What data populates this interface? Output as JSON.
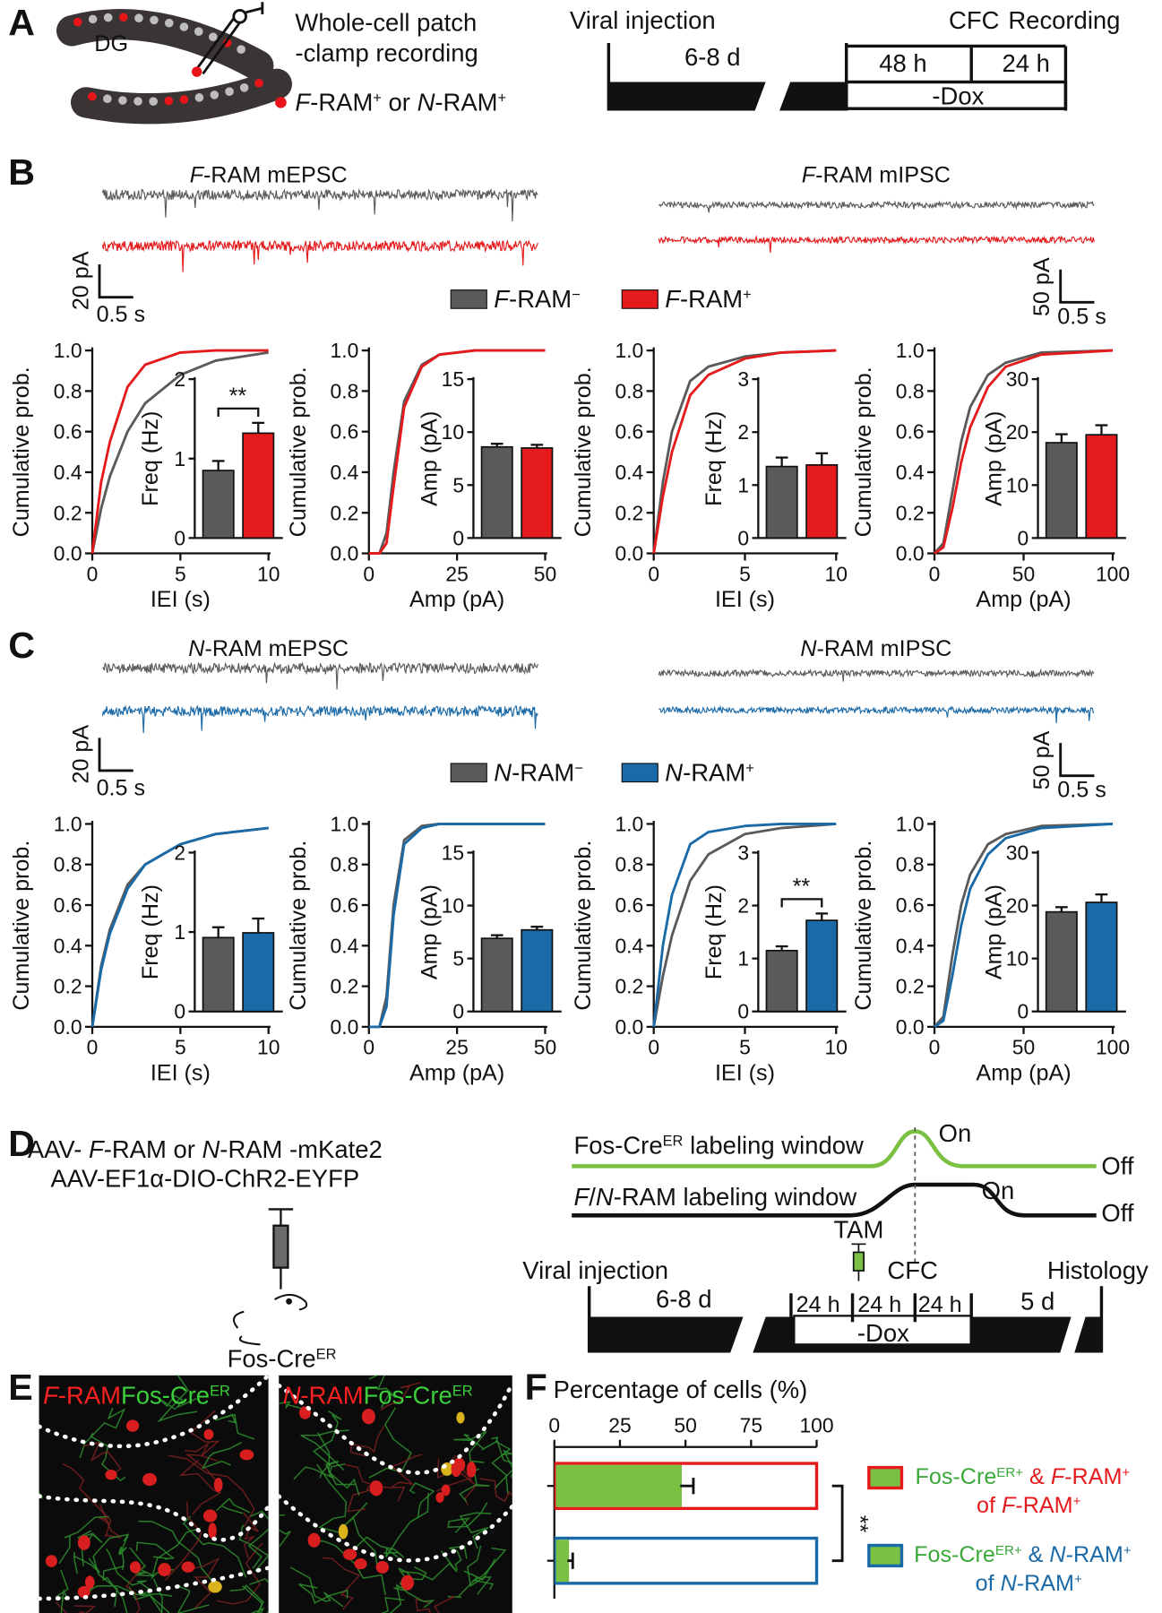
{
  "panel_labels": [
    "A",
    "B",
    "C",
    "D",
    "E",
    "F"
  ],
  "a": {
    "dg": "DG",
    "method": [
      "Whole-cell patch",
      "-clamp recording"
    ],
    "cell_legend": [
      "F",
      "-RAM",
      "+",
      " or ",
      "N",
      "-RAM",
      "+"
    ],
    "timeline": {
      "viral": "Viral injection",
      "cfc": "CFC",
      "recording": "Recording",
      "d1": "6-8 d",
      "d2": "48 h",
      "d3": "24 h",
      "dox": "-Dox"
    }
  },
  "b": {
    "titles": [
      [
        "F",
        "-RAM mEPSC"
      ],
      [
        "F",
        "-RAM mIPSC"
      ]
    ],
    "scale_left": [
      "20 pA",
      "0.5 s"
    ],
    "scale_right": [
      "50 pA",
      "0.5 s"
    ],
    "legend": [
      [
        "F",
        "-RAM",
        "−"
      ],
      [
        "F",
        "-RAM",
        "+"
      ]
    ],
    "colors": [
      "#5a5a5a",
      "#e41a1c"
    ]
  },
  "c": {
    "titles": [
      [
        "N",
        "-RAM mEPSC"
      ],
      [
        "N",
        "-RAM mIPSC"
      ]
    ],
    "scale_left": [
      "20 pA",
      "0.5 s"
    ],
    "scale_right": [
      "50 pA",
      "0.5 s"
    ],
    "legend": [
      [
        "N",
        "-RAM",
        "−"
      ],
      [
        "N",
        "-RAM",
        "+"
      ]
    ],
    "colors": [
      "#5a5a5a",
      "#1b6aa8"
    ]
  },
  "d": {
    "virus1": [
      "AAV- ",
      "F",
      "-RAM or ",
      "N",
      "-RAM -mKate2"
    ],
    "virus2": "AAV-EF1α-DIO-ChR2-EYFP",
    "mouse": [
      "Fos-Cre",
      "ER"
    ],
    "green_window": [
      "Fos-Cre",
      "ER",
      " labeling window"
    ],
    "green_on": "On",
    "green_off": "Off",
    "black_window": [
      "F",
      "/",
      "N",
      "-RAM labeling window"
    ],
    "black_on": "On",
    "black_off": "Off",
    "tam": "TAM",
    "timeline": {
      "viral": "Viral injection",
      "cfc": "CFC",
      "histology": "Histology",
      "d1": "6-8 d",
      "h1": "24 h",
      "h2": "24 h",
      "h3": "24 h",
      "d2": "5 d",
      "dox": "-Dox"
    }
  },
  "e": {
    "left": [
      "F",
      "-RAM",
      "Fos-Cre",
      "ER"
    ],
    "right": [
      "N",
      "-RAM",
      "Fos-Cre",
      "ER"
    ]
  },
  "chart_data": [
    {
      "type": "line",
      "xlabel": "IEI (s)",
      "ylabel": "Cumulative prob.",
      "x": [
        0,
        0.5,
        1,
        2,
        3,
        5,
        7,
        10
      ],
      "xlim": [
        0,
        10
      ],
      "xticks": [
        0,
        5,
        10
      ],
      "ylim": [
        0,
        1
      ],
      "yticks": [
        {
          "value": 0,
          "label": "0.0"
        },
        0.2,
        0.4,
        0.6,
        0.8,
        {
          "value": 1,
          "label": "1.0"
        }
      ],
      "series": [
        {
          "color": "#5a5a5a",
          "values": [
            0,
            0.22,
            0.38,
            0.6,
            0.74,
            0.88,
            0.95,
            0.99
          ]
        },
        {
          "color": "#e41a1c",
          "values": [
            0,
            0.35,
            0.55,
            0.82,
            0.93,
            0.99,
            1,
            1
          ]
        }
      ]
    },
    {
      "type": "bar",
      "ylabel": "Freq (Hz)",
      "ylim": [
        0,
        2
      ],
      "yticks": [
        0,
        1,
        2
      ],
      "categories": [
        null,
        null
      ],
      "values": [
        0.85,
        1.32
      ],
      "errors": [
        0.12,
        0.13
      ],
      "colors": [
        "#5a5a5a",
        "#e41a1c"
      ],
      "significance": "**"
    },
    {
      "type": "line",
      "xlabel": "Amp (pA)",
      "ylabel": "Cumulative prob.",
      "x": [
        0,
        3,
        5,
        7,
        10,
        15,
        20,
        30,
        50
      ],
      "xlim": [
        0,
        50
      ],
      "xticks": [
        0,
        25,
        50
      ],
      "ylim": [
        0,
        1
      ],
      "yticks": [
        {
          "value": 0,
          "label": "0.0"
        },
        0.2,
        0.4,
        0.6,
        0.8,
        {
          "value": 1,
          "label": "1.0"
        }
      ],
      "series": [
        {
          "color": "#5a5a5a",
          "values": [
            0,
            0,
            0.1,
            0.4,
            0.75,
            0.93,
            0.98,
            1,
            1
          ]
        },
        {
          "color": "#e41a1c",
          "values": [
            0,
            0,
            0.05,
            0.33,
            0.72,
            0.92,
            0.98,
            1,
            1
          ]
        }
      ]
    },
    {
      "type": "bar",
      "ylabel": "Amp (pA)",
      "ylim": [
        0,
        15
      ],
      "yticks": [
        0,
        5,
        10,
        15
      ],
      "categories": [
        null,
        null
      ],
      "values": [
        8.6,
        8.5
      ],
      "errors": [
        0.3,
        0.3
      ],
      "colors": [
        "#5a5a5a",
        "#e41a1c"
      ]
    },
    {
      "type": "line",
      "xlabel": "IEI (s)",
      "ylabel": "Cumulative prob.",
      "x": [
        0,
        0.5,
        1,
        2,
        3,
        5,
        7,
        10
      ],
      "xlim": [
        0,
        10
      ],
      "xticks": [
        0,
        5,
        10
      ],
      "ylim": [
        0,
        1
      ],
      "yticks": [
        {
          "value": 0,
          "label": "0.0"
        },
        0.2,
        0.4,
        0.6,
        0.8,
        {
          "value": 1,
          "label": "1.0"
        }
      ],
      "series": [
        {
          "color": "#5a5a5a",
          "values": [
            0,
            0.35,
            0.6,
            0.85,
            0.92,
            0.97,
            0.99,
            1
          ]
        },
        {
          "color": "#e41a1c",
          "values": [
            0,
            0.28,
            0.5,
            0.78,
            0.88,
            0.96,
            0.99,
            1
          ]
        }
      ]
    },
    {
      "type": "bar",
      "ylabel": "Freq (Hz)",
      "ylim": [
        0,
        3
      ],
      "yticks": [
        0,
        1,
        2,
        3
      ],
      "categories": [
        null,
        null
      ],
      "values": [
        1.35,
        1.38
      ],
      "errors": [
        0.17,
        0.22
      ],
      "colors": [
        "#5a5a5a",
        "#e41a1c"
      ]
    },
    {
      "type": "line",
      "xlabel": "Amp (pA)",
      "ylabel": "Cumulative prob.",
      "x": [
        0,
        5,
        10,
        15,
        20,
        30,
        40,
        60,
        100
      ],
      "xlim": [
        0,
        100
      ],
      "xticks": [
        0,
        50,
        100
      ],
      "ylim": [
        0,
        1
      ],
      "yticks": [
        {
          "value": 0,
          "label": "0.0"
        },
        0.2,
        0.4,
        0.6,
        0.8,
        {
          "value": 1,
          "label": "1.0"
        }
      ],
      "series": [
        {
          "color": "#5a5a5a",
          "values": [
            0,
            0.05,
            0.3,
            0.55,
            0.72,
            0.88,
            0.94,
            0.99,
            1
          ]
        },
        {
          "color": "#e41a1c",
          "values": [
            0,
            0.03,
            0.22,
            0.45,
            0.62,
            0.82,
            0.92,
            0.98,
            1
          ]
        }
      ]
    },
    {
      "type": "bar",
      "ylabel": "Amp (pA)",
      "ylim": [
        0,
        30
      ],
      "yticks": [
        0,
        10,
        20,
        30
      ],
      "categories": [
        null,
        null
      ],
      "values": [
        18,
        19.5
      ],
      "errors": [
        1.6,
        1.8
      ],
      "colors": [
        "#5a5a5a",
        "#e41a1c"
      ]
    },
    {
      "type": "line",
      "xlabel": "IEI (s)",
      "ylabel": "Cumulative prob.",
      "x": [
        0,
        0.5,
        1,
        2,
        3,
        5,
        7,
        10
      ],
      "xlim": [
        0,
        10
      ],
      "xticks": [
        0,
        5,
        10
      ],
      "ylim": [
        0,
        1
      ],
      "yticks": [
        {
          "value": 0,
          "label": "0.0"
        },
        0.2,
        0.4,
        0.6,
        0.8,
        {
          "value": 1,
          "label": "1.0"
        }
      ],
      "series": [
        {
          "color": "#5a5a5a",
          "values": [
            0,
            0.3,
            0.48,
            0.7,
            0.8,
            0.9,
            0.95,
            0.98
          ]
        },
        {
          "color": "#1b6aa8",
          "values": [
            0,
            0.28,
            0.46,
            0.68,
            0.8,
            0.9,
            0.95,
            0.98
          ]
        }
      ]
    },
    {
      "type": "bar",
      "ylabel": "Freq (Hz)",
      "ylim": [
        0,
        2
      ],
      "yticks": [
        0,
        1,
        2
      ],
      "categories": [
        null,
        null
      ],
      "values": [
        0.93,
        0.99
      ],
      "errors": [
        0.13,
        0.18
      ],
      "colors": [
        "#5a5a5a",
        "#1b6aa8"
      ]
    },
    {
      "type": "line",
      "xlabel": "Amp (pA)",
      "ylabel": "Cumulative prob.",
      "x": [
        0,
        3,
        5,
        7,
        10,
        15,
        20,
        30,
        50
      ],
      "xlim": [
        0,
        50
      ],
      "xticks": [
        0,
        25,
        50
      ],
      "ylim": [
        0,
        1
      ],
      "yticks": [
        {
          "value": 0,
          "label": "0.0"
        },
        0.2,
        0.4,
        0.6,
        0.8,
        {
          "value": 1,
          "label": "1.0"
        }
      ],
      "series": [
        {
          "color": "#5a5a5a",
          "values": [
            0,
            0,
            0.15,
            0.6,
            0.92,
            0.99,
            1,
            1,
            1
          ]
        },
        {
          "color": "#1b6aa8",
          "values": [
            0,
            0,
            0.1,
            0.55,
            0.9,
            0.98,
            1,
            1,
            1
          ]
        }
      ]
    },
    {
      "type": "bar",
      "ylabel": "Amp (pA)",
      "ylim": [
        0,
        15
      ],
      "yticks": [
        0,
        5,
        10,
        15
      ],
      "categories": [
        null,
        null
      ],
      "values": [
        6.9,
        7.7
      ],
      "errors": [
        0.3,
        0.3
      ],
      "colors": [
        "#5a5a5a",
        "#1b6aa8"
      ]
    },
    {
      "type": "line",
      "xlabel": "IEI (s)",
      "ylabel": "Cumulative prob.",
      "x": [
        0,
        0.5,
        1,
        2,
        3,
        5,
        7,
        10
      ],
      "xlim": [
        0,
        10
      ],
      "xticks": [
        0,
        5,
        10
      ],
      "ylim": [
        0,
        1
      ],
      "yticks": [
        {
          "value": 0,
          "label": "0.0"
        },
        0.2,
        0.4,
        0.6,
        0.8,
        {
          "value": 1,
          "label": "1.0"
        }
      ],
      "series": [
        {
          "color": "#5a5a5a",
          "values": [
            0,
            0.25,
            0.45,
            0.72,
            0.85,
            0.95,
            0.98,
            1
          ]
        },
        {
          "color": "#1b6aa8",
          "values": [
            0,
            0.4,
            0.65,
            0.9,
            0.96,
            0.99,
            1,
            1
          ]
        }
      ]
    },
    {
      "type": "bar",
      "ylabel": "Freq (Hz)",
      "ylim": [
        0,
        3
      ],
      "yticks": [
        0,
        1,
        2,
        3
      ],
      "categories": [
        null,
        null
      ],
      "values": [
        1.15,
        1.72
      ],
      "errors": [
        0.08,
        0.13
      ],
      "colors": [
        "#5a5a5a",
        "#1b6aa8"
      ],
      "significance": "**"
    },
    {
      "type": "line",
      "xlabel": "Amp (pA)",
      "ylabel": "Cumulative prob.",
      "x": [
        0,
        5,
        10,
        15,
        20,
        30,
        40,
        60,
        100
      ],
      "xlim": [
        0,
        100
      ],
      "xticks": [
        0,
        50,
        100
      ],
      "ylim": [
        0,
        1
      ],
      "yticks": [
        {
          "value": 0,
          "label": "0.0"
        },
        0.2,
        0.4,
        0.6,
        0.8,
        {
          "value": 1,
          "label": "1.0"
        }
      ],
      "series": [
        {
          "color": "#5a5a5a",
          "values": [
            0,
            0.05,
            0.35,
            0.6,
            0.75,
            0.9,
            0.95,
            0.99,
            1
          ]
        },
        {
          "color": "#1b6aa8",
          "values": [
            0,
            0.03,
            0.25,
            0.5,
            0.68,
            0.85,
            0.93,
            0.98,
            1
          ]
        }
      ]
    },
    {
      "type": "bar",
      "ylabel": "Amp (pA)",
      "ylim": [
        0,
        30
      ],
      "yticks": [
        0,
        10,
        20,
        30
      ],
      "categories": [
        null,
        null
      ],
      "values": [
        18.8,
        20.6
      ],
      "errors": [
        0.9,
        1.5
      ],
      "colors": [
        "#5a5a5a",
        "#1b6aa8"
      ]
    },
    {
      "type": "hbar",
      "title": "Percentage of cells (%)",
      "xlim": [
        0,
        100
      ],
      "xticks": [
        0,
        25,
        50,
        75,
        100
      ],
      "categories": [
        null,
        null
      ],
      "values": [
        48,
        5
      ],
      "errors": [
        5,
        2
      ],
      "totals": [
        100,
        100
      ],
      "bar_color": "#7ac143",
      "outline_colors": [
        "#e41a1c",
        "#1b6aa8"
      ],
      "significance": "**",
      "legend": [
        {
          "line1": [
            "Fos-Cre",
            "ER+",
            " & ",
            "F",
            "-RAM",
            "+"
          ],
          "line2": [
            "of ",
            "F",
            "-RAM",
            "+"
          ]
        },
        {
          "line1": [
            "Fos-Cre",
            "ER+",
            " & ",
            "N",
            "-RAM",
            "+"
          ],
          "line2": [
            "of ",
            "N",
            "-RAM",
            "+"
          ]
        }
      ]
    }
  ]
}
